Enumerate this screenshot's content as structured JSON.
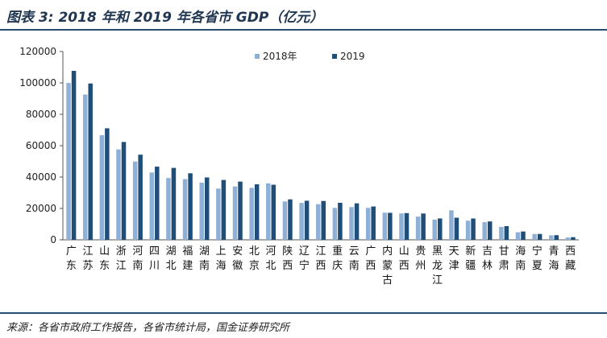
{
  "header": {
    "title": "图表 3:  2018 年和 2019 年各省市 GDP（亿元）"
  },
  "footer": {
    "source": "来源：各省市政府工作报告，各省市统计局，国金证券研究所"
  },
  "chart_data": {
    "type": "bar",
    "title": "",
    "xlabel": "",
    "ylabel": "",
    "ylim": [
      0,
      120000
    ],
    "yticks": [
      0,
      20000,
      40000,
      60000,
      80000,
      100000,
      120000
    ],
    "grid": false,
    "legend_position": "top-right",
    "categories": [
      "广东",
      "江苏",
      "山东",
      "浙江",
      "河南",
      "四川",
      "湖北",
      "福建",
      "湖南",
      "上海",
      "安徽",
      "北京",
      "河北",
      "陕西",
      "辽宁",
      "江西",
      "重庆",
      "云南",
      "广西",
      "内蒙古",
      "山西",
      "贵州",
      "黑龙江",
      "天津",
      "新疆",
      "吉林",
      "甘肃",
      "海南",
      "宁夏",
      "青海",
      "西藏"
    ],
    "series": [
      {
        "name": "2018年",
        "color": "#8fb0d6",
        "values": [
          99945,
          92595,
          66649,
          57600,
          49936,
          42902,
          39367,
          38688,
          36426,
          32680,
          34011,
          33106,
          36010,
          24438,
          23510,
          22716,
          20363,
          20881,
          20353,
          17289,
          16818,
          14806,
          12846,
          18810,
          12199,
          11254,
          8246,
          4832,
          3705,
          2865,
          1478
        ]
      },
      {
        "name": "2019",
        "color": "#1f4e79",
        "values": [
          107671,
          99632,
          71068,
          62352,
          54259,
          46616,
          45828,
          42395,
          39752,
          38155,
          37114,
          35371,
          35105,
          25793,
          24909,
          24758,
          23606,
          23224,
          21237,
          17213,
          17027,
          16769,
          13613,
          14104,
          13597,
          11727,
          8718,
          5309,
          3748,
          2966,
          1698
        ]
      }
    ]
  }
}
